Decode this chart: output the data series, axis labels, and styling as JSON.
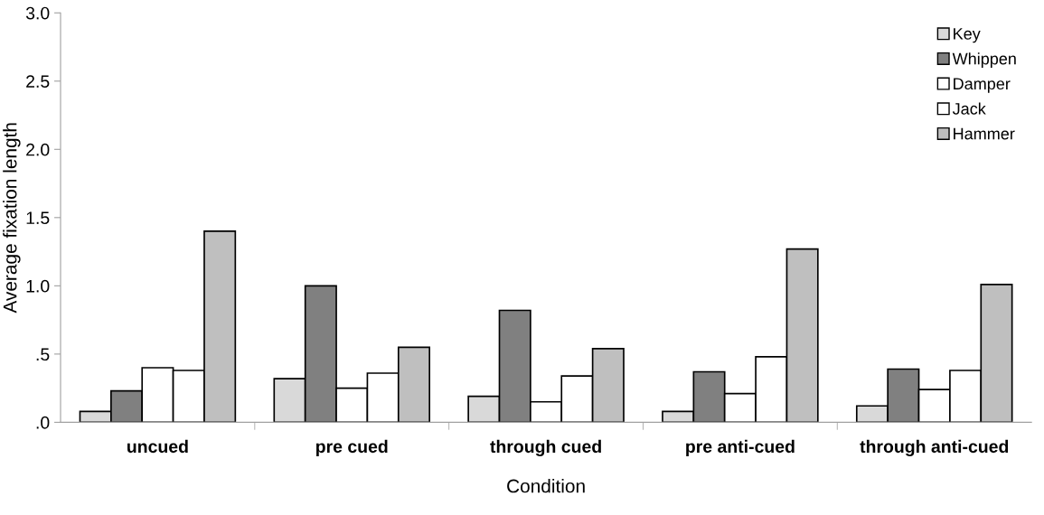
{
  "chart_data": {
    "type": "bar",
    "xlabel": "Condition",
    "ylabel": "Average fixation length",
    "categories": [
      "uncued",
      "pre cued",
      "through cued",
      "pre anti-cued",
      "through anti-cued"
    ],
    "series": [
      {
        "name": "Key",
        "color": "#d9d9d9",
        "values": [
          0.08,
          0.32,
          0.19,
          0.08,
          0.12
        ]
      },
      {
        "name": "Whippen",
        "color": "#808080",
        "values": [
          0.23,
          1.0,
          0.82,
          0.37,
          0.39
        ]
      },
      {
        "name": "Damper",
        "color": "#ffffff",
        "values": [
          0.4,
          0.25,
          0.15,
          0.21,
          0.24
        ]
      },
      {
        "name": "Jack",
        "color": "#ffffff",
        "values": [
          0.38,
          0.36,
          0.34,
          0.48,
          0.38
        ]
      },
      {
        "name": "Hammer",
        "color": "#bfbfbf",
        "values": [
          1.4,
          0.55,
          0.54,
          1.27,
          1.01
        ]
      }
    ],
    "ylim": [
      0,
      3.0
    ],
    "yticks": [
      {
        "value": 0,
        "label": ".0"
      },
      {
        "value": 0.5,
        "label": ".5"
      },
      {
        "value": 1.0,
        "label": "1.0"
      },
      {
        "value": 1.5,
        "label": "1.5"
      },
      {
        "value": 2.0,
        "label": "2.0"
      },
      {
        "value": 2.5,
        "label": "2.5"
      },
      {
        "value": 3.0,
        "label": "3.0"
      }
    ],
    "legend": "top right",
    "grid": false
  }
}
